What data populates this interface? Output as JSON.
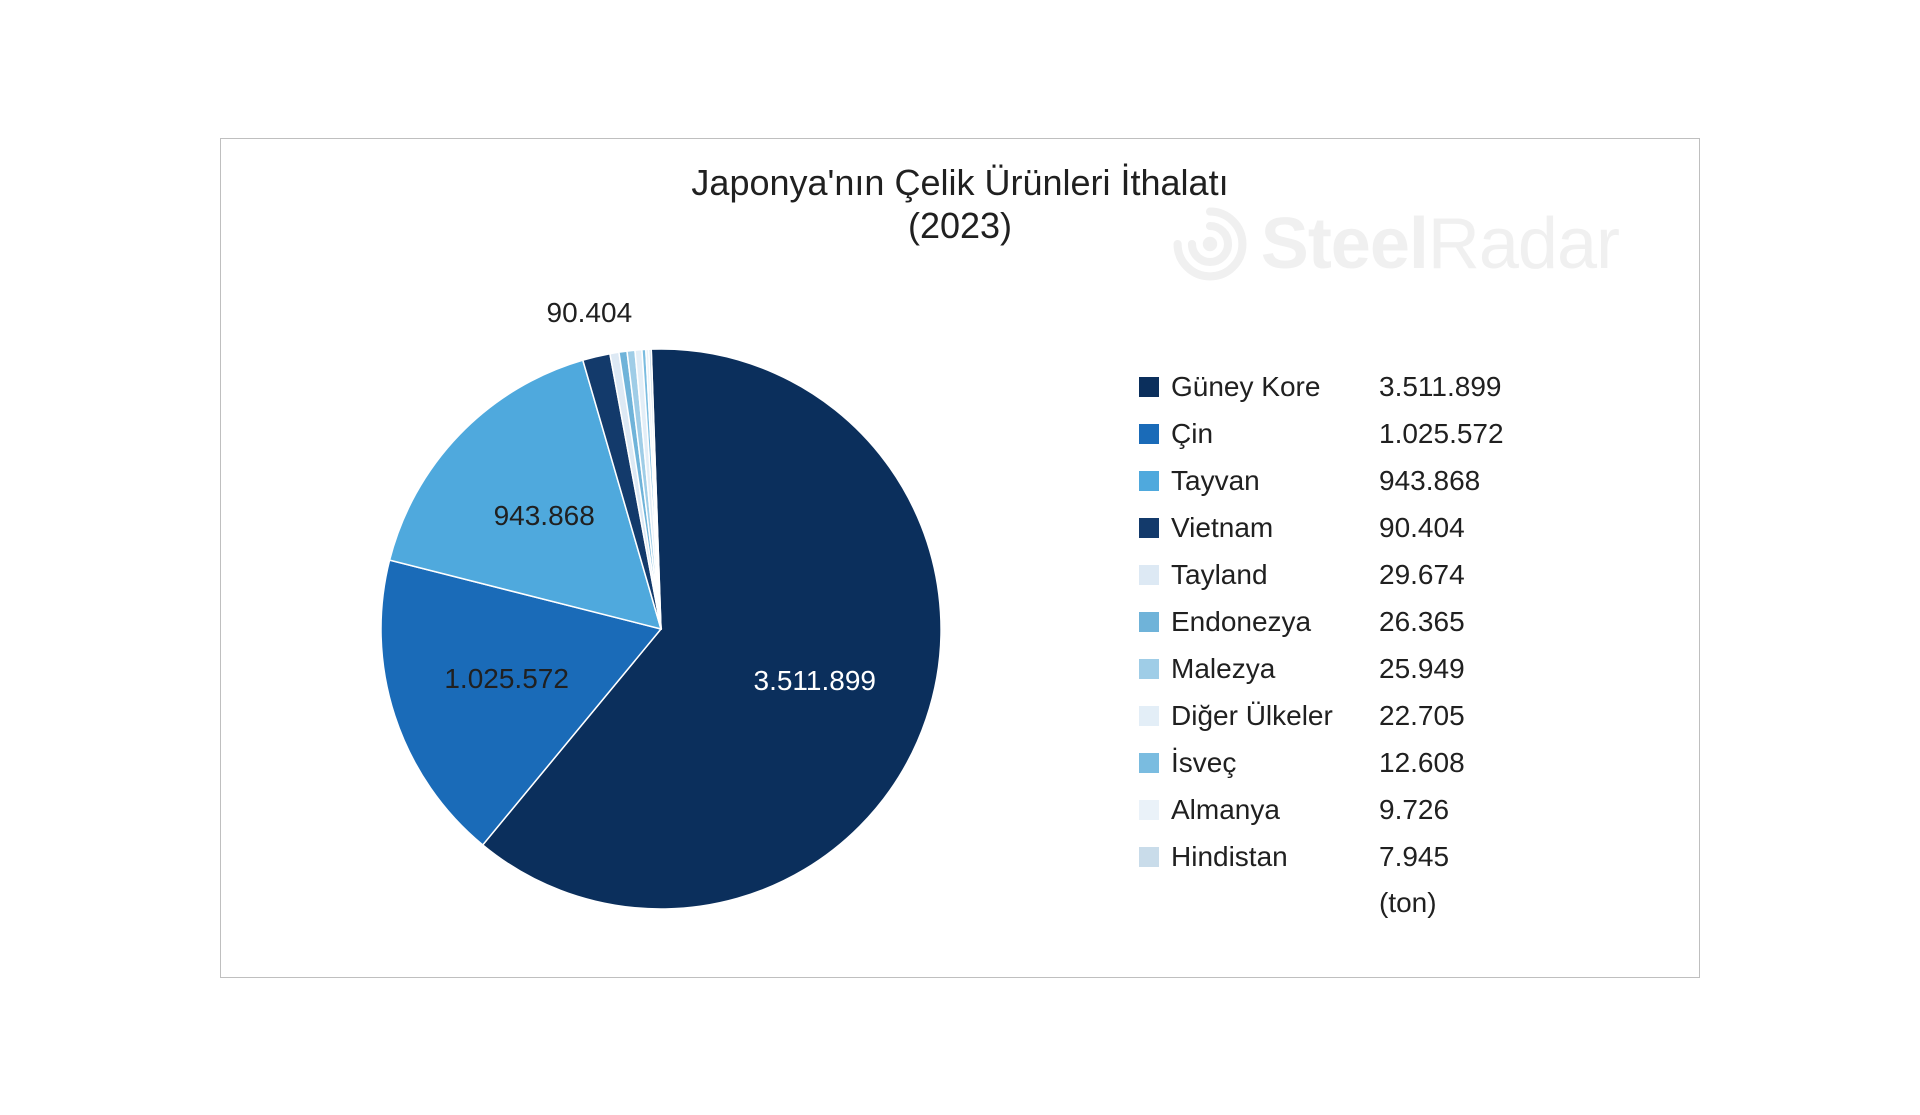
{
  "chart": {
    "type": "pie",
    "title_line1": "Japonya'nın Çelik Ürünleri İthalatı",
    "title_line2": "(2023)",
    "title_fontsize": 36,
    "title_color": "#202020",
    "background_color": "#ffffff",
    "border_color": "#bfbfbf",
    "start_angle_deg": -2,
    "direction": "clockwise",
    "label_fontsize": 28,
    "label_color": "#202020",
    "legend_fontsize": 28,
    "legend_color": "#202020",
    "unit_label": "(ton)",
    "watermark": {
      "text_bold": "Steel",
      "text_light": "Radar",
      "color": "#f0f0f0",
      "fontsize": 72
    },
    "visible_slice_labels": [
      "3.511.899",
      "1.025.572",
      "943.868",
      "90.404"
    ],
    "data": [
      {
        "name": "Güney Kore",
        "value_label": "3.511.899",
        "value": 3511899,
        "color": "#0b2f5c"
      },
      {
        "name": "Çin",
        "value_label": "1.025.572",
        "value": 1025572,
        "color": "#1a6bb8"
      },
      {
        "name": "Tayvan",
        "value_label": "943.868",
        "value": 943868,
        "color": "#4fa9dd"
      },
      {
        "name": "Vietnam",
        "value_label": "90.404",
        "value": 90404,
        "color": "#133a6b"
      },
      {
        "name": "Tayland",
        "value_label": "29.674",
        "value": 29674,
        "color": "#dde9f4"
      },
      {
        "name": "Endonezya",
        "value_label": "26.365",
        "value": 26365,
        "color": "#6fb3d9"
      },
      {
        "name": "Malezya",
        "value_label": "25.949",
        "value": 25949,
        "color": "#9fcde7"
      },
      {
        "name": "Diğer Ülkeler",
        "value_label": "22.705",
        "value": 22705,
        "color": "#e3eef7"
      },
      {
        "name": "İsveç",
        "value_label": "12.608",
        "value": 12608,
        "color": "#7abce0"
      },
      {
        "name": "Almanya",
        "value_label": "9.726",
        "value": 9726,
        "color": "#eaf2f9"
      },
      {
        "name": "Hindistan",
        "value_label": "7.945",
        "value": 7945,
        "color": "#c9dcea"
      }
    ]
  }
}
